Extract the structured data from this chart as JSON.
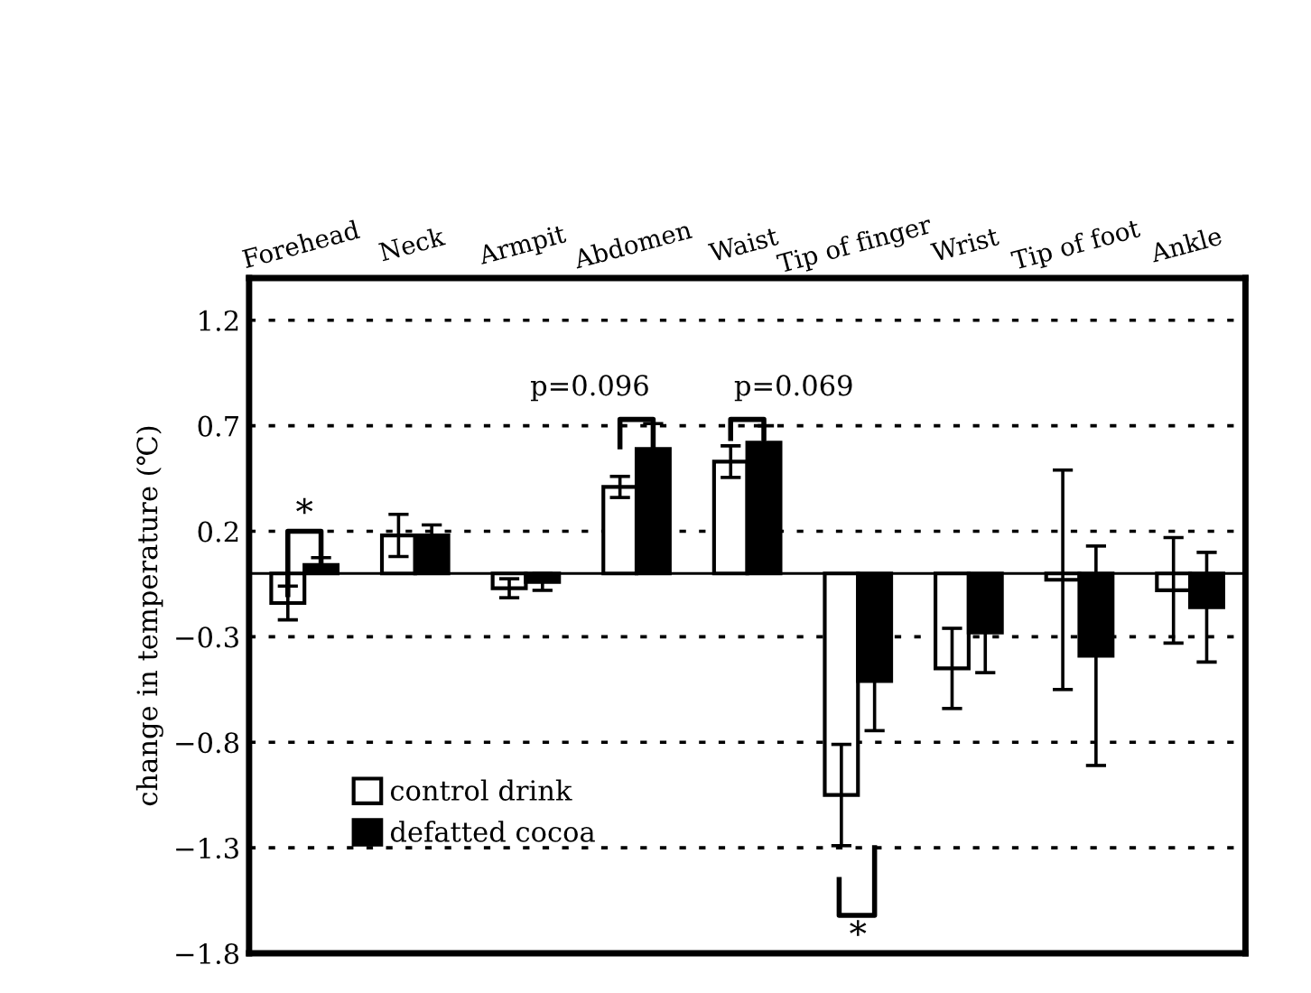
{
  "chart_data": {
    "type": "bar",
    "ylabel": "change in temperature (℃)",
    "categories": [
      "Forehead",
      "Neck",
      "Armpit",
      "Abdomen",
      "Waist",
      "Tip of finger",
      "Wrist",
      "Tip of foot",
      "Ankle"
    ],
    "series": [
      {
        "name": "control drink",
        "color": "#ffffff",
        "values": [
          -0.14,
          0.18,
          -0.07,
          0.41,
          0.53,
          -1.05,
          -0.45,
          -0.03,
          -0.08
        ],
        "errors": [
          0.08,
          0.1,
          0.045,
          0.05,
          0.075,
          0.24,
          0.19,
          0.52,
          0.25
        ]
      },
      {
        "name": "defatted cocoa",
        "color": "#000000",
        "values": [
          0.04,
          0.18,
          -0.04,
          0.59,
          0.62,
          -0.51,
          -0.28,
          -0.39,
          -0.16
        ],
        "errors": [
          0.035,
          0.05,
          0.04,
          0.12,
          0.08,
          0.235,
          0.19,
          0.52,
          0.26
        ]
      }
    ],
    "ylim": [
      -1.8,
      1.4
    ],
    "yticks": [
      1.2,
      0.7,
      0.2,
      -0.3,
      -0.8,
      -1.3,
      -1.8
    ],
    "grid": "y",
    "legend": "bottom left",
    "ref_lines": [
      {
        "axis": "y",
        "value": 0,
        "color": "#000000",
        "line_style": "solid"
      }
    ],
    "annotations": [
      "*",
      "p=0.096",
      "p=0.069",
      "*"
    ]
  }
}
